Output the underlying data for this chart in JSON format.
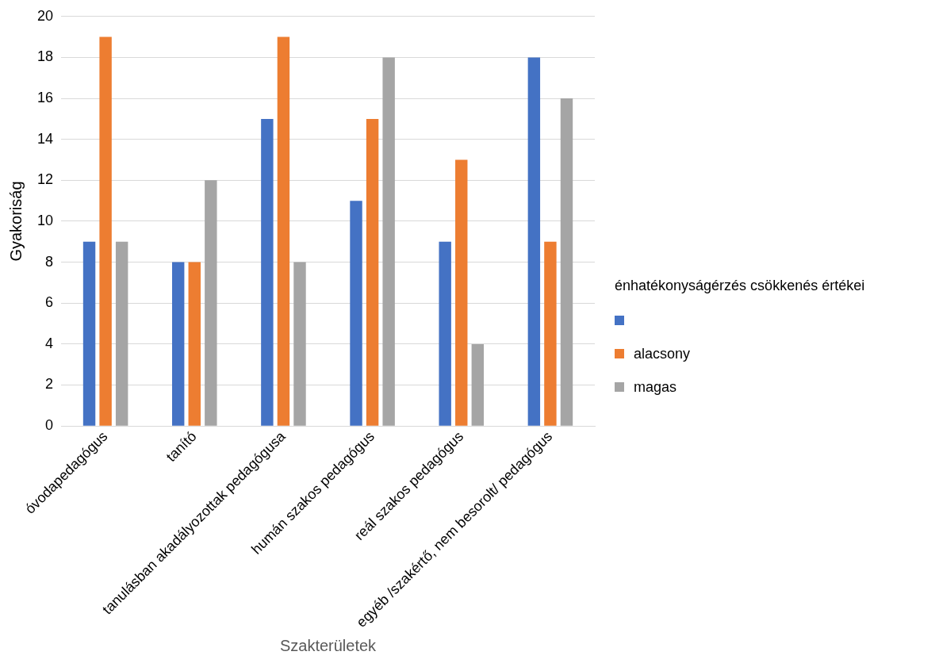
{
  "chart_data": {
    "type": "bar",
    "categories": [
      "óvodapedagógus",
      "tanító",
      "tanulásban akadályozottak pedagógusa",
      "humán szakos pedagógus",
      "reál szakos pedagógus",
      "egyéb /szakértő, nem besorolt/ pedagógus"
    ],
    "series": [
      {
        "color": "#4472c4",
        "values": [
          9,
          8,
          15,
          11,
          9,
          18
        ]
      },
      {
        "name": "alacsony",
        "color": "#ed7d31",
        "values": [
          19,
          8,
          19,
          15,
          13,
          9
        ]
      },
      {
        "name": "magas",
        "color": "#a5a5a5",
        "values": [
          9,
          12,
          8,
          18,
          4,
          16
        ]
      }
    ],
    "xlabel": "Szakterületek",
    "ylabel": "Gyakoriság",
    "legend_title": "énhatékonyságérzés csökkenés értékei",
    "ylim": [
      0,
      20
    ],
    "yticks": [
      0,
      2,
      4,
      6,
      8,
      10,
      12,
      14,
      16,
      18,
      20
    ],
    "grid": "y",
    "legend": "right"
  }
}
